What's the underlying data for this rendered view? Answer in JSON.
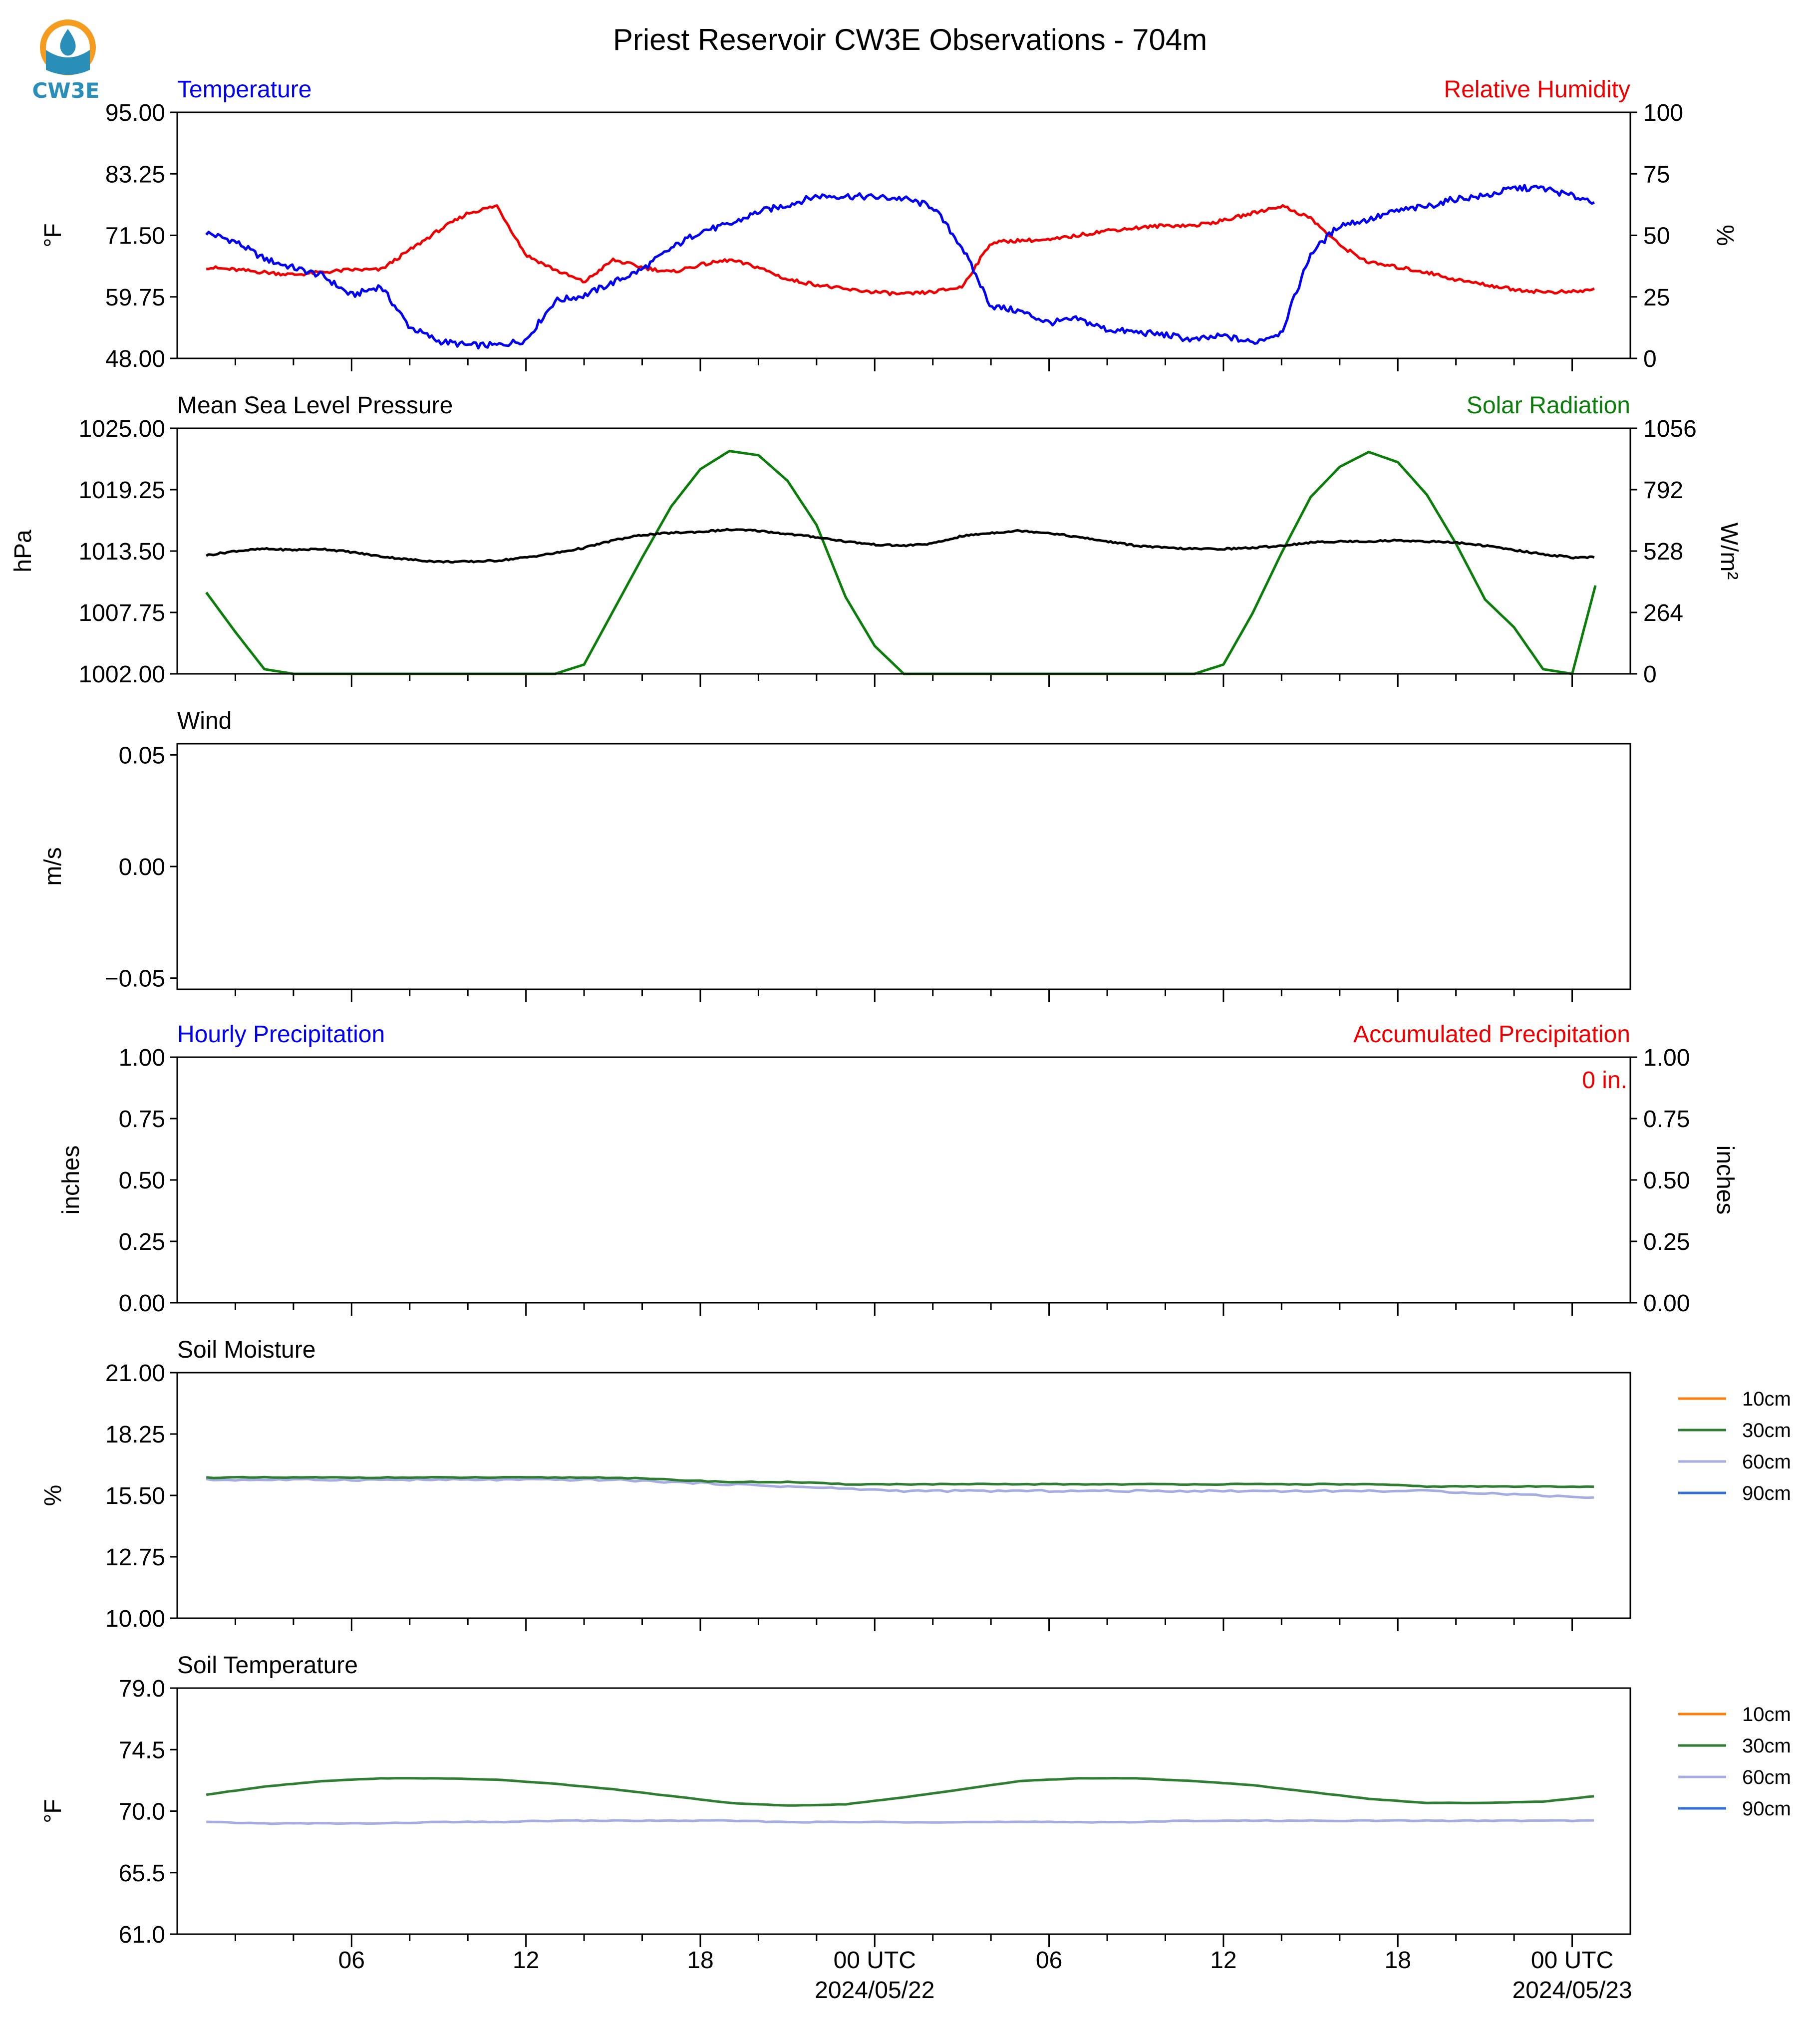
{
  "title": "Priest Reservoir CW3E Observations - 704m",
  "logo": {
    "text": "CW3E",
    "icon": "cw3e-logo-icon",
    "color": "#2a8fb8",
    "accent": "#f39c1f"
  },
  "x_axis": {
    "ticks": [
      "06",
      "12",
      "18",
      "00 UTC",
      "06",
      "12",
      "18",
      "00 UTC"
    ],
    "dates": [
      "2024/05/22",
      "2024/05/23"
    ]
  },
  "colors": {
    "temperature": "#0000ee",
    "humidity": "#ee0000",
    "pressure": "#000000",
    "solar": "#0a7d0a",
    "soil10": "#ff7f0e",
    "soil30": "#2e7d32",
    "soil60": "#a4ace2",
    "soil90": "#2f6fd6"
  },
  "chart_data": [
    {
      "type": "line",
      "title_left": "Temperature",
      "title_right": "Relative Humidity",
      "ylabel_left": "°F",
      "ylabel_right": "%",
      "ylim_left": [
        48.0,
        95.0
      ],
      "ylim_right": [
        0,
        100
      ],
      "yticks_left": [
        "95.00",
        "83.25",
        "71.50",
        "59.75",
        "48.00"
      ],
      "yticks_right": [
        "100",
        "75",
        "50",
        "25",
        "0"
      ],
      "x_hours": [
        1,
        2,
        3,
        4,
        5,
        6,
        7,
        8,
        9,
        10,
        11,
        12,
        13,
        14,
        15,
        16,
        17,
        18,
        19,
        20,
        21,
        22,
        23,
        24,
        25,
        26,
        27,
        28,
        29,
        30,
        31,
        32,
        33,
        34,
        35,
        36,
        37,
        38,
        39,
        40,
        41,
        42,
        43,
        44,
        45,
        46,
        47,
        48,
        48.8
      ],
      "series": [
        {
          "name": "Temperature",
          "values": [
            72.0,
            70.3,
            67.0,
            65.3,
            63.8,
            60.0,
            61.8,
            54.0,
            51.3,
            50.5,
            50.5,
            51.5,
            59.0,
            60.0,
            62.5,
            65.0,
            69.0,
            72.3,
            73.5,
            76.0,
            77.3,
            79.0,
            79.0,
            78.8,
            78.5,
            77.0,
            69.3,
            58.0,
            57.0,
            54.8,
            55.5,
            53.5,
            53.0,
            52.5,
            51.5,
            52.3,
            51.0,
            53.0,
            68.0,
            73.5,
            74.5,
            76.2,
            77.0,
            78.5,
            79.0,
            80.5,
            80.5,
            79.0,
            78.0
          ]
        },
        {
          "name": "Relative Humidity",
          "values": [
            37,
            36,
            35,
            34,
            35,
            36,
            36,
            44,
            52,
            59,
            62,
            42,
            36,
            31,
            40,
            37,
            35,
            38,
            40,
            37,
            32,
            30,
            28,
            27,
            26,
            27,
            29,
            47,
            48,
            48,
            50,
            52,
            53,
            54,
            54,
            56,
            59,
            62,
            57,
            46,
            39,
            37,
            35,
            32,
            30,
            28,
            27,
            27,
            28
          ]
        }
      ]
    },
    {
      "type": "line",
      "title_left": "Mean Sea Level Pressure",
      "title_right": "Solar Radiation",
      "ylabel_left": "hPa",
      "ylabel_right": "W/m²",
      "ylim_left": [
        1002.0,
        1025.0
      ],
      "ylim_right": [
        0,
        1056
      ],
      "yticks_left": [
        "1025.00",
        "1019.25",
        "1013.50",
        "1007.75",
        "1002.00"
      ],
      "yticks_right": [
        "1056",
        "792",
        "528",
        "264",
        "0"
      ],
      "x_hours": [
        1,
        2,
        3,
        4,
        5,
        6,
        7,
        8,
        9,
        10,
        11,
        12,
        13,
        14,
        15,
        16,
        17,
        18,
        19,
        20,
        21,
        22,
        23,
        24,
        25,
        26,
        27,
        28,
        29,
        30,
        31,
        32,
        33,
        34,
        35,
        36,
        37,
        38,
        39,
        40,
        41,
        42,
        43,
        44,
        45,
        46,
        47,
        48,
        48.8
      ],
      "series": [
        {
          "name": "Mean Sea Level Pressure",
          "values": [
            1013.1,
            1013.5,
            1013.7,
            1013.6,
            1013.7,
            1013.4,
            1013.0,
            1012.7,
            1012.5,
            1012.5,
            1012.6,
            1012.9,
            1013.3,
            1013.8,
            1014.5,
            1015.0,
            1015.2,
            1015.3,
            1015.5,
            1015.4,
            1015.1,
            1014.8,
            1014.4,
            1014.1,
            1014.0,
            1014.2,
            1014.9,
            1015.2,
            1015.4,
            1015.2,
            1014.8,
            1014.4,
            1014.0,
            1013.8,
            1013.7,
            1013.7,
            1013.8,
            1014.0,
            1014.3,
            1014.4,
            1014.4,
            1014.5,
            1014.4,
            1014.3,
            1014.0,
            1013.6,
            1013.2,
            1012.9,
            1012.9
          ]
        },
        {
          "name": "Solar Radiation",
          "values": [
            350,
            180,
            20,
            0,
            0,
            0,
            0,
            0,
            0,
            0,
            0,
            0,
            0,
            40,
            270,
            500,
            720,
            880,
            958,
            940,
            830,
            640,
            330,
            120,
            0,
            0,
            0,
            0,
            0,
            0,
            0,
            0,
            0,
            0,
            0,
            40,
            260,
            520,
            760,
            890,
            954,
            910,
            770,
            560,
            320,
            200,
            20,
            0,
            380
          ]
        }
      ]
    },
    {
      "type": "line",
      "title_left": "Wind",
      "ylabel_left": "m/s",
      "ylim_left": [
        -0.055,
        0.055
      ],
      "yticks_left": [
        "0.05",
        "0.00",
        "−0.05"
      ],
      "series": []
    },
    {
      "type": "line",
      "title_left": "Hourly Precipitation",
      "title_right": "Accumulated Precipitation",
      "ylabel_left": "inches",
      "ylabel_right": "inches",
      "ylim_left": [
        0,
        1
      ],
      "ylim_right": [
        0,
        1
      ],
      "yticks_left": [
        "1.00",
        "0.75",
        "0.50",
        "0.25",
        "0.00"
      ],
      "yticks_right": [
        "1.00",
        "0.75",
        "0.50",
        "0.25",
        "0.00"
      ],
      "annotation": "0 in.",
      "series": [
        {
          "name": "Hourly Precipitation",
          "values": [
            0
          ]
        },
        {
          "name": "Accumulated Precipitation",
          "values": [
            0
          ]
        }
      ]
    },
    {
      "type": "line",
      "title_left": "Soil Moisture",
      "ylabel_left": "%",
      "ylim_left": [
        10.0,
        21.0
      ],
      "yticks_left": [
        "21.00",
        "18.25",
        "15.50",
        "12.75",
        "10.00"
      ],
      "legend": [
        "10cm",
        "30cm",
        "60cm",
        "90cm"
      ],
      "x_hours": [
        1,
        3,
        5,
        7,
        9,
        11,
        13,
        15,
        17,
        19,
        21,
        23,
        25,
        27,
        29,
        31,
        33,
        35,
        37,
        39,
        41,
        43,
        45,
        47,
        48.8
      ],
      "series": [
        {
          "name": "30cm",
          "values": [
            16.3,
            16.3,
            16.3,
            16.3,
            16.3,
            16.3,
            16.3,
            16.3,
            16.2,
            16.1,
            16.1,
            16.0,
            16.0,
            16.0,
            16.0,
            16.0,
            16.0,
            16.0,
            16.0,
            16.0,
            16.0,
            15.9,
            15.9,
            15.9,
            15.9
          ]
        },
        {
          "name": "60cm",
          "values": [
            16.2,
            16.2,
            16.2,
            16.2,
            16.2,
            16.2,
            16.2,
            16.2,
            16.1,
            16.0,
            15.9,
            15.8,
            15.7,
            15.7,
            15.7,
            15.7,
            15.7,
            15.7,
            15.7,
            15.7,
            15.7,
            15.7,
            15.6,
            15.5,
            15.4
          ]
        }
      ]
    },
    {
      "type": "line",
      "title_left": "Soil Temperature",
      "ylabel_left": "°F",
      "ylim_left": [
        61.0,
        79.0
      ],
      "yticks_left": [
        "79.0",
        "74.5",
        "70.0",
        "65.5",
        "61.0"
      ],
      "legend": [
        "10cm",
        "30cm",
        "60cm",
        "90cm"
      ],
      "x_hours": [
        1,
        3,
        5,
        7,
        9,
        11,
        13,
        15,
        17,
        19,
        21,
        23,
        25,
        27,
        29,
        31,
        33,
        35,
        37,
        39,
        41,
        43,
        45,
        47,
        48.8
      ],
      "series": [
        {
          "name": "30cm",
          "values": [
            71.2,
            71.8,
            72.2,
            72.4,
            72.4,
            72.3,
            72.0,
            71.6,
            71.1,
            70.6,
            70.4,
            70.5,
            71.0,
            71.6,
            72.2,
            72.4,
            72.4,
            72.2,
            71.9,
            71.4,
            70.9,
            70.6,
            70.6,
            70.7,
            71.1
          ]
        },
        {
          "name": "60cm",
          "values": [
            69.2,
            69.1,
            69.1,
            69.1,
            69.2,
            69.2,
            69.3,
            69.3,
            69.3,
            69.3,
            69.2,
            69.2,
            69.2,
            69.2,
            69.2,
            69.2,
            69.2,
            69.3,
            69.3,
            69.3,
            69.3,
            69.3,
            69.3,
            69.3,
            69.3
          ]
        }
      ]
    }
  ]
}
